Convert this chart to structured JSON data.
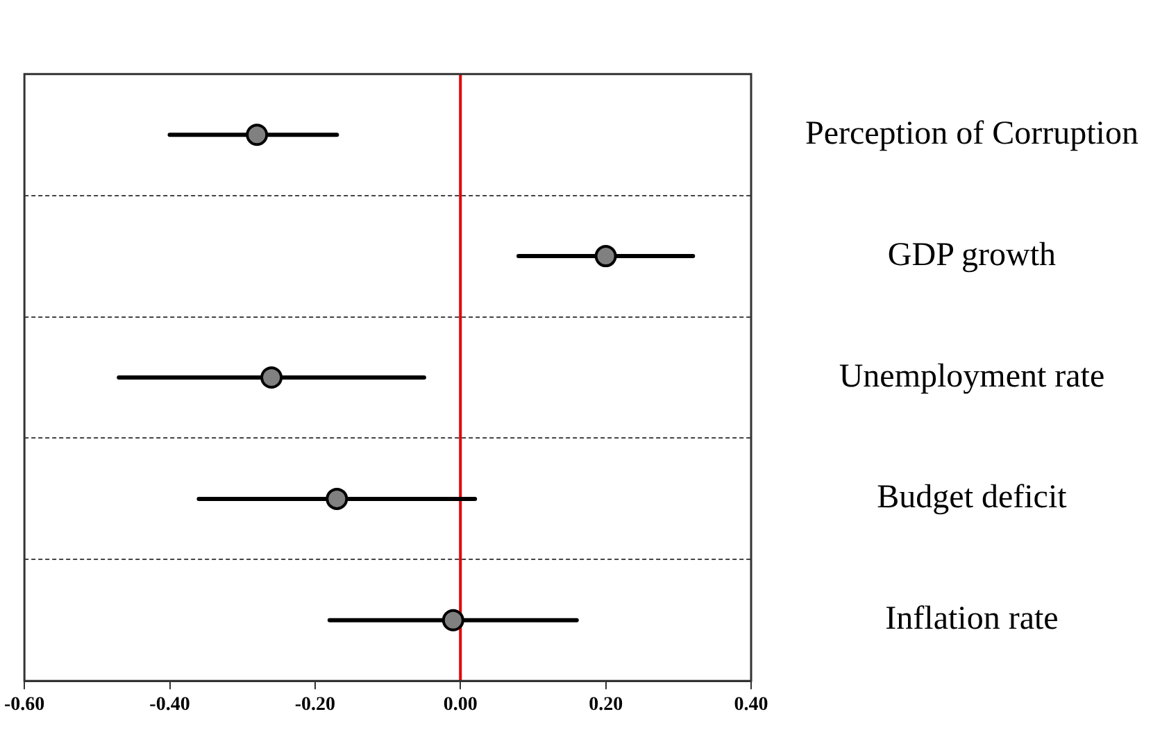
{
  "chart_data": {
    "type": "scatter",
    "orientation": "horizontal",
    "categories": [
      "Perception of Corruption",
      "GDP growth",
      "Unemployment rate",
      "Budget deficit",
      "Inflation rate"
    ],
    "values": [
      -0.28,
      0.2,
      -0.26,
      -0.17,
      -0.01
    ],
    "errors": [
      [
        -0.4,
        -0.17
      ],
      [
        0.08,
        0.32
      ],
      [
        -0.47,
        -0.05
      ],
      [
        -0.36,
        0.02
      ],
      [
        -0.18,
        0.16
      ]
    ],
    "color": "#808080",
    "marker": "circle",
    "xlim": [
      -0.6,
      0.4
    ],
    "xticks": [
      {
        "value": -0.6,
        "label": "-0.60"
      },
      {
        "value": -0.4,
        "label": "-0.40"
      },
      {
        "value": -0.2,
        "label": "-0.20"
      },
      {
        "value": 0,
        "label": "0.00"
      },
      {
        "value": 0.2,
        "label": "0.20"
      },
      {
        "value": 0.4,
        "label": "0.40"
      }
    ],
    "grid": "y",
    "ref_lines": [
      {
        "axis": "x",
        "value": 0,
        "color": "#e00000"
      }
    ]
  }
}
